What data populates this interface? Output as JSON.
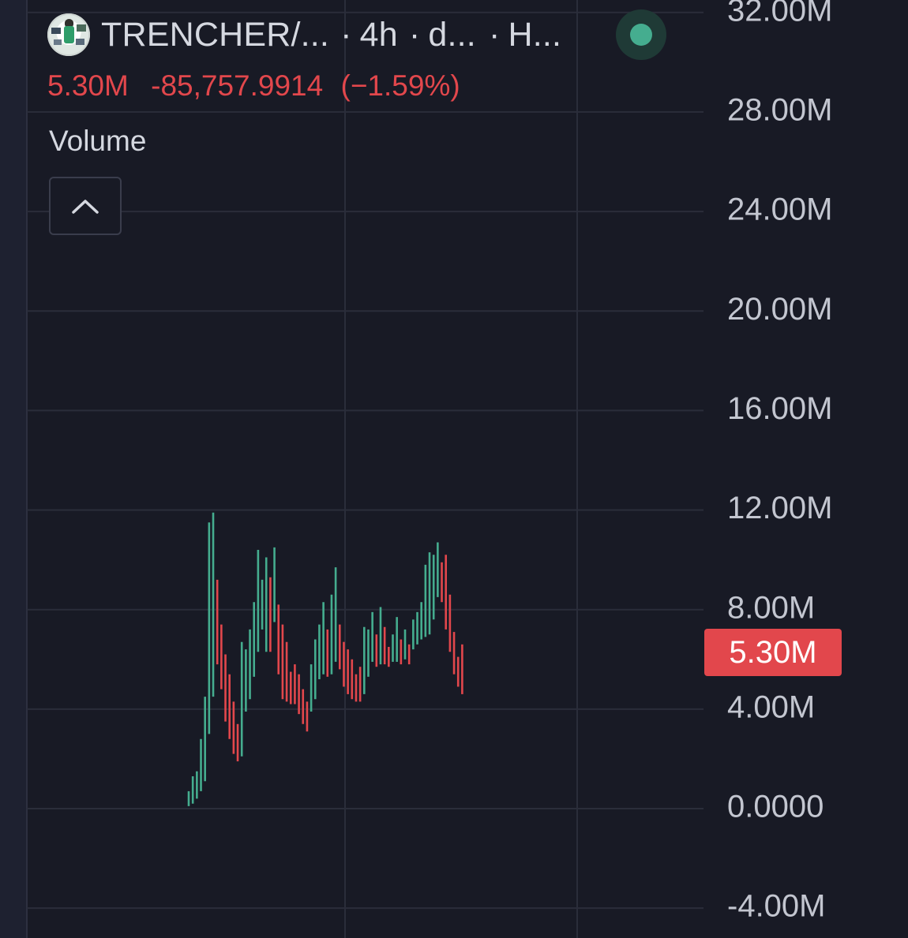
{
  "header": {
    "symbol": "TRENCHER/...",
    "interval": "4h",
    "source_abbrev": "d...",
    "extra_abbrev": "H...",
    "separator": "·",
    "avatar_icon": "token-avatar-icon",
    "live_indicator_color": "#45ad8f"
  },
  "price_line": {
    "last_value": "5.30M",
    "change": "-85,757.9914",
    "change_pct": "(−1.59%)",
    "color": "#e2474c"
  },
  "indicator": {
    "label": "Volume",
    "collapse_icon": "chevron-up-icon"
  },
  "price_badge": {
    "label": "5.30M",
    "value": 5300000,
    "color": "#e2474c"
  },
  "colors": {
    "background": "#181a25",
    "grid": "#2a2d3a",
    "axis_text": "#c3c6d0",
    "up": "#45ad8f",
    "down": "#e2474c"
  },
  "chart_data": {
    "type": "bar",
    "title": "",
    "xlabel": "",
    "ylabel": "",
    "ylim": [
      -5200000,
      32500000
    ],
    "y_ticks": [
      {
        "value": 32000000,
        "label": "32.00M"
      },
      {
        "value": 28000000,
        "label": "28.00M"
      },
      {
        "value": 24000000,
        "label": "24.00M"
      },
      {
        "value": 20000000,
        "label": "20.00M"
      },
      {
        "value": 16000000,
        "label": "16.00M"
      },
      {
        "value": 12000000,
        "label": "12.00M"
      },
      {
        "value": 8000000,
        "label": "8.00M"
      },
      {
        "value": 4000000,
        "label": "4.00M"
      },
      {
        "value": 0,
        "label": "0.0000"
      },
      {
        "value": -4000000,
        "label": "-4.00M"
      }
    ],
    "grid": true,
    "bar_style": "ohlc-vertical-range",
    "series": [
      {
        "ranges": [
          [
            0.1,
            0.7,
            "up"
          ],
          [
            0.2,
            1.3,
            "up"
          ],
          [
            0.4,
            1.5,
            "up"
          ],
          [
            0.7,
            2.8,
            "up"
          ],
          [
            1.1,
            4.5,
            "up"
          ],
          [
            3.0,
            11.5,
            "up"
          ],
          [
            4.5,
            11.9,
            "up"
          ],
          [
            5.8,
            9.2,
            "down"
          ],
          [
            4.8,
            7.4,
            "down"
          ],
          [
            3.5,
            6.2,
            "down"
          ],
          [
            2.8,
            5.4,
            "down"
          ],
          [
            2.2,
            4.3,
            "down"
          ],
          [
            1.9,
            3.4,
            "down"
          ],
          [
            2.1,
            6.7,
            "up"
          ],
          [
            3.9,
            6.4,
            "up"
          ],
          [
            4.4,
            7.2,
            "up"
          ],
          [
            5.3,
            8.3,
            "up"
          ],
          [
            6.3,
            10.4,
            "up"
          ],
          [
            7.2,
            9.2,
            "up"
          ],
          [
            6.3,
            10.1,
            "up"
          ],
          [
            6.3,
            9.3,
            "down"
          ],
          [
            7.5,
            10.5,
            "up"
          ],
          [
            5.4,
            8.2,
            "down"
          ],
          [
            4.4,
            7.4,
            "down"
          ],
          [
            4.3,
            6.7,
            "down"
          ],
          [
            4.2,
            5.5,
            "down"
          ],
          [
            4.2,
            5.8,
            "down"
          ],
          [
            3.8,
            5.4,
            "down"
          ],
          [
            3.4,
            4.8,
            "down"
          ],
          [
            3.1,
            4.3,
            "down"
          ],
          [
            3.9,
            5.8,
            "up"
          ],
          [
            4.4,
            6.8,
            "up"
          ],
          [
            5.2,
            7.4,
            "up"
          ],
          [
            5.4,
            8.3,
            "up"
          ],
          [
            5.3,
            7.2,
            "down"
          ],
          [
            5.4,
            8.6,
            "up"
          ],
          [
            5.9,
            9.7,
            "up"
          ],
          [
            5.6,
            7.4,
            "down"
          ],
          [
            4.9,
            6.7,
            "down"
          ],
          [
            4.6,
            6.4,
            "down"
          ],
          [
            4.4,
            6.0,
            "down"
          ],
          [
            4.3,
            5.4,
            "down"
          ],
          [
            4.3,
            5.7,
            "down"
          ],
          [
            4.6,
            7.3,
            "up"
          ],
          [
            5.3,
            7.2,
            "up"
          ],
          [
            5.9,
            7.9,
            "up"
          ],
          [
            5.7,
            7.0,
            "down"
          ],
          [
            5.8,
            8.1,
            "up"
          ],
          [
            5.8,
            7.3,
            "down"
          ],
          [
            5.7,
            6.5,
            "down"
          ],
          [
            5.9,
            7.0,
            "up"
          ],
          [
            5.9,
            7.7,
            "up"
          ],
          [
            5.8,
            6.8,
            "down"
          ],
          [
            6.0,
            7.2,
            "up"
          ],
          [
            5.8,
            6.6,
            "down"
          ],
          [
            6.4,
            7.6,
            "up"
          ],
          [
            6.6,
            7.9,
            "up"
          ],
          [
            6.8,
            8.3,
            "up"
          ],
          [
            6.9,
            9.8,
            "up"
          ],
          [
            7.0,
            10.3,
            "up"
          ],
          [
            7.6,
            10.2,
            "up"
          ],
          [
            8.5,
            10.7,
            "up"
          ],
          [
            8.3,
            9.9,
            "down"
          ],
          [
            7.2,
            10.2,
            "down"
          ],
          [
            6.3,
            8.6,
            "down"
          ],
          [
            5.4,
            7.1,
            "down"
          ],
          [
            4.9,
            6.1,
            "down"
          ],
          [
            4.6,
            6.6,
            "down"
          ]
        ]
      }
    ]
  }
}
